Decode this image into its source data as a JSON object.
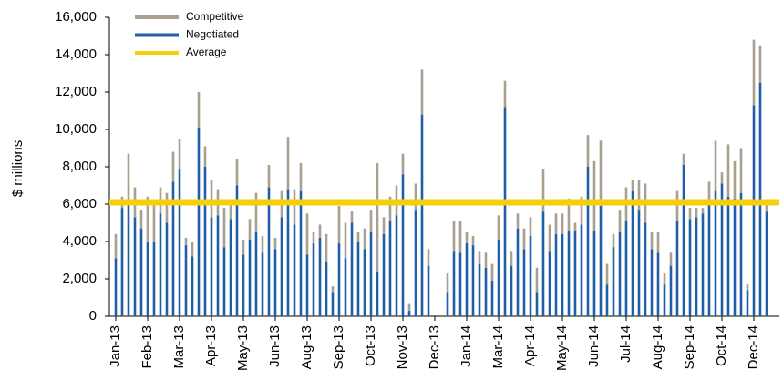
{
  "chart_data": {
    "type": "bar",
    "stacked": true,
    "y_label": "$ millions",
    "categories": [
      "Jan-13",
      null,
      null,
      null,
      null,
      "Feb-13",
      null,
      null,
      null,
      null,
      "Mar-13",
      null,
      null,
      null,
      null,
      "Apr-13",
      null,
      null,
      null,
      null,
      "May-13",
      null,
      null,
      null,
      null,
      "Jun-13",
      null,
      null,
      null,
      null,
      "Aug-13",
      null,
      null,
      null,
      null,
      "Sep-13",
      null,
      null,
      null,
      null,
      "Oct-13",
      null,
      null,
      null,
      null,
      "Nov-13",
      null,
      null,
      null,
      null,
      "Dec-13",
      null,
      null,
      null,
      null,
      "Jan-14",
      null,
      null,
      null,
      null,
      "Mar-14",
      null,
      null,
      null,
      null,
      "Apr-14",
      null,
      null,
      null,
      null,
      "May-14",
      null,
      null,
      null,
      null,
      "Jun-14",
      null,
      null,
      null,
      null,
      "Jul-14",
      null,
      null,
      null,
      null,
      "Aug-14",
      null,
      null,
      null,
      null,
      "Sep-14",
      null,
      null,
      null,
      null,
      "Oct-14",
      null,
      null,
      null,
      null,
      "Dec-14",
      null,
      null
    ],
    "series": [
      {
        "name": "Negotiated",
        "color": "#1f5fa8",
        "values": [
          3100,
          5800,
          6200,
          5300,
          4700,
          4000,
          4000,
          5500,
          5000,
          7200,
          7900,
          3800,
          3200,
          10100,
          8000,
          5300,
          5400,
          3700,
          5200,
          7000,
          3300,
          4100,
          4500,
          3400,
          6900,
          3600,
          5300,
          6800,
          4900,
          6700,
          3300,
          3900,
          4200,
          2900,
          1300,
          3900,
          3100,
          5000,
          4000,
          3600,
          4500,
          2400,
          4400,
          5100,
          5400,
          7600,
          300,
          5700,
          10800,
          2700,
          0,
          0,
          1300,
          3500,
          3400,
          3900,
          3800,
          2800,
          2600,
          1900,
          4100,
          11200,
          2700,
          4700,
          3600,
          4300,
          1300,
          5600,
          3500,
          4400,
          4400,
          4600,
          4600,
          4900,
          8000,
          4600,
          5900,
          1700,
          3700,
          4500,
          5100,
          6700,
          5700,
          5000,
          3600,
          3400,
          1700,
          2700,
          5100,
          8100,
          5200,
          5300,
          5500,
          6000,
          6700,
          7100,
          6400,
          6300,
          6600,
          1400,
          11300,
          12500,
          5600
        ]
      },
      {
        "name": "Competitive",
        "color": "#aaa08f",
        "values": [
          1300,
          600,
          2500,
          1600,
          1000,
          2400,
          2000,
          1400,
          1600,
          1600,
          1600,
          400,
          800,
          1900,
          1100,
          2000,
          1400,
          2100,
          800,
          1400,
          800,
          1100,
          2100,
          900,
          1200,
          600,
          1400,
          2800,
          1900,
          1500,
          2200,
          600,
          700,
          1500,
          300,
          2000,
          1900,
          600,
          500,
          1100,
          1200,
          5800,
          900,
          1300,
          1600,
          1100,
          400,
          1400,
          2400,
          900,
          0,
          0,
          1000,
          1600,
          1700,
          600,
          500,
          700,
          800,
          900,
          1300,
          1400,
          800,
          800,
          1100,
          1000,
          1300,
          2300,
          1400,
          1100,
          1100,
          1700,
          400,
          1500,
          1700,
          3700,
          3500,
          1100,
          700,
          1200,
          1800,
          600,
          1600,
          2100,
          900,
          1100,
          600,
          700,
          1600,
          600,
          600,
          500,
          300,
          1200,
          2700,
          600,
          2800,
          2000,
          2400,
          300,
          3500,
          2000,
          500
        ]
      }
    ],
    "average": {
      "name": "Average",
      "color": "#f5cf0a",
      "value": 6100
    },
    "ylim": [
      0,
      16000
    ],
    "yticks": [
      0,
      {
        "value": 2000,
        "label": "2,000"
      },
      {
        "value": 4000,
        "label": "4,000"
      },
      {
        "value": 6000,
        "label": "6,000"
      },
      {
        "value": 8000,
        "label": "8,000"
      },
      {
        "value": 10000,
        "label": "10,000"
      },
      {
        "value": 12000,
        "label": "12,000"
      },
      {
        "value": 14000,
        "label": "14,000"
      },
      {
        "value": 16000,
        "label": "16,000"
      }
    ],
    "legend": "top-left",
    "grid": false
  }
}
